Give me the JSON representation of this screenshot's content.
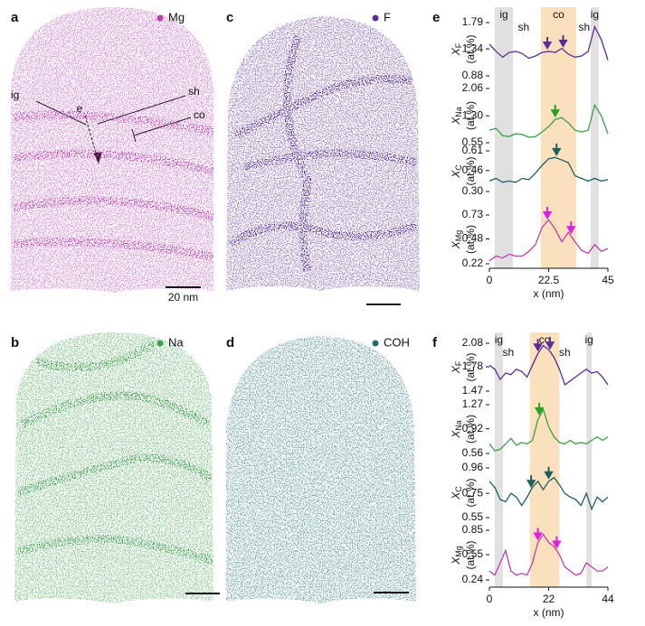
{
  "maps": [
    {
      "letter": "a",
      "element": "Mg",
      "color": "#c040b8",
      "scale_bar": "20 nm",
      "annotations": [
        "ig",
        "e",
        "sh",
        "co"
      ]
    },
    {
      "letter": "b",
      "element": "Na",
      "color": "#3aa048"
    },
    {
      "letter": "c",
      "element": "F",
      "color": "#5a2e9a"
    },
    {
      "letter": "d",
      "element": "COH",
      "color": "#1f6e6e"
    }
  ],
  "chart_data": [
    {
      "type": "line",
      "panel": "e",
      "xlabel": "x (nm)",
      "xlim": [
        0,
        45
      ],
      "xticks": [
        0,
        22.5,
        45
      ],
      "x": [
        0,
        2.5,
        5,
        7.5,
        10,
        12.5,
        15,
        17.5,
        20,
        22.5,
        25,
        27.5,
        30,
        32.5,
        35,
        37.5,
        40,
        42.5,
        45
      ],
      "regions": [
        {
          "label": "ig",
          "span": [
            2,
            9
          ],
          "color": "#e0e0e0"
        },
        {
          "label": "co",
          "span": [
            19.5,
            33
          ],
          "color": "#fbe0bd"
        },
        {
          "label": "ig",
          "span": [
            38.5,
            41.5
          ],
          "color": "#e0e0e0"
        }
      ],
      "annotations": [
        {
          "text": "sh",
          "x": 13
        },
        {
          "text": "sh",
          "x": 36
        }
      ],
      "series": [
        {
          "symbol": "X",
          "sub": "F",
          "unit": "(at.%)",
          "color": "#5a2e9a",
          "ylim": [
            0.88,
            1.79
          ],
          "yticks": [
            0.88,
            1.34,
            1.79
          ],
          "values": [
            1.42,
            1.3,
            1.2,
            1.28,
            1.3,
            1.26,
            1.18,
            1.22,
            1.28,
            1.3,
            1.28,
            1.35,
            1.25,
            1.2,
            1.22,
            1.3,
            1.72,
            1.5,
            1.15
          ],
          "arrows": [
            22,
            28
          ],
          "arrow_color": "#5a2e9a"
        },
        {
          "symbol": "X",
          "sub": "Na",
          "unit": "(at.%)",
          "color": "#3aa048",
          "ylim": [
            0.55,
            2.06
          ],
          "yticks": [
            0.55,
            {
              "value": 1.3,
              "label": "1.30"
            },
            2.06
          ],
          "values": [
            0.9,
            0.95,
            0.75,
            0.72,
            0.8,
            0.78,
            0.7,
            0.72,
            0.85,
            1.0,
            1.2,
            1.25,
            1.1,
            0.9,
            0.85,
            0.9,
            1.6,
            1.3,
            0.8
          ],
          "arrows": [
            25
          ],
          "arrow_color": "#2aa020"
        },
        {
          "symbol": "X",
          "sub": "C",
          "unit": "(at.%)",
          "color": "#1f6060",
          "ylim": [
            0.3,
            0.61
          ],
          "yticks": [
            {
              "value": 0.3,
              "label": "0.30"
            },
            0.46,
            0.61
          ],
          "values": [
            0.38,
            0.4,
            0.37,
            0.38,
            0.37,
            0.4,
            0.39,
            0.44,
            0.5,
            0.55,
            0.56,
            0.54,
            0.52,
            0.42,
            0.4,
            0.38,
            0.4,
            0.38,
            0.39
          ],
          "arrows": [
            25.5
          ],
          "arrow_color": "#1f6060"
        },
        {
          "symbol": "X",
          "sub": "Mg",
          "unit": "(at.%)",
          "color": "#c040a8",
          "ylim": [
            0.22,
            0.73
          ],
          "yticks": [
            0.22,
            0.48,
            0.73
          ],
          "values": [
            0.25,
            0.3,
            0.28,
            0.32,
            0.3,
            0.3,
            0.35,
            0.42,
            0.6,
            0.68,
            0.58,
            0.45,
            0.55,
            0.45,
            0.36,
            0.33,
            0.42,
            0.35,
            0.38
          ],
          "arrows": [
            22,
            31
          ],
          "arrow_color": "#e020e0"
        }
      ]
    },
    {
      "type": "line",
      "panel": "f",
      "xlabel": "x (nm)",
      "xlim": [
        0,
        44
      ],
      "xticks": [
        0,
        22,
        44
      ],
      "x": [
        0,
        2,
        4,
        6,
        8,
        10,
        12,
        14,
        16,
        18,
        20,
        22,
        24,
        26,
        28,
        30,
        32,
        34,
        36,
        38,
        40,
        42,
        44
      ],
      "regions": [
        {
          "label": "ig",
          "span": [
            2,
            5
          ],
          "color": "#e0e0e0"
        },
        {
          "label": "co",
          "span": [
            15,
            26
          ],
          "color": "#fbe0bd"
        },
        {
          "label": "ig",
          "span": [
            36,
            38
          ],
          "color": "#e0e0e0"
        }
      ],
      "annotations": [
        {
          "text": "sh",
          "x": 7
        },
        {
          "text": "sh",
          "x": 28
        }
      ],
      "series": [
        {
          "symbol": "X",
          "sub": "F",
          "unit": "(at.%)",
          "color": "#5a2e9a",
          "ylim": [
            1.47,
            2.08
          ],
          "yticks": [
            1.47,
            1.78,
            2.08
          ],
          "values": [
            1.8,
            1.75,
            1.62,
            1.7,
            1.68,
            1.75,
            1.72,
            1.65,
            1.8,
            1.95,
            2.05,
            2.0,
            1.9,
            1.75,
            1.55,
            1.6,
            1.65,
            1.7,
            1.75,
            1.7,
            1.72,
            1.65,
            1.55
          ],
          "arrows": [
            18,
            22.5
          ],
          "arrow_color": "#5a2e9a"
        },
        {
          "symbol": "X",
          "sub": "Na",
          "unit": "(at.%)",
          "color": "#3aa048",
          "ylim": [
            0.56,
            1.27
          ],
          "yticks": [
            0.56,
            0.92,
            1.27
          ],
          "values": [
            0.7,
            0.6,
            0.62,
            0.7,
            0.78,
            0.68,
            0.72,
            0.7,
            0.75,
            1.05,
            1.2,
            0.95,
            0.8,
            0.72,
            0.7,
            0.75,
            0.7,
            0.72,
            0.7,
            0.75,
            0.8,
            0.75,
            0.8
          ],
          "arrows": [
            18.5
          ],
          "arrow_color": "#2aa020"
        },
        {
          "symbol": "X",
          "sub": "C",
          "unit": "(at.%)",
          "color": "#1f6060",
          "ylim": [
            0.55,
            0.96
          ],
          "yticks": [
            0.55,
            0.75,
            0.96
          ],
          "values": [
            0.85,
            0.8,
            0.7,
            0.68,
            0.75,
            0.72,
            0.65,
            0.72,
            0.8,
            0.85,
            0.78,
            0.85,
            0.88,
            0.82,
            0.75,
            0.72,
            0.7,
            0.65,
            0.75,
            0.62,
            0.72,
            0.68,
            0.72
          ],
          "arrows": [
            15.5,
            22
          ],
          "arrow_color": "#1f6060"
        },
        {
          "symbol": "X",
          "sub": "Mg",
          "unit": "(at.%)",
          "color": "#c040a8",
          "ylim": [
            0.24,
            0.85
          ],
          "yticks": [
            0.24,
            0.55,
            0.85
          ],
          "values": [
            0.35,
            0.3,
            0.45,
            0.6,
            0.35,
            0.3,
            0.32,
            0.3,
            0.45,
            0.7,
            0.8,
            0.7,
            0.65,
            0.55,
            0.4,
            0.35,
            0.3,
            0.32,
            0.45,
            0.4,
            0.35,
            0.35,
            0.4
          ],
          "arrows": [
            18,
            25
          ],
          "arrow_color": "#e020e0"
        }
      ]
    }
  ]
}
